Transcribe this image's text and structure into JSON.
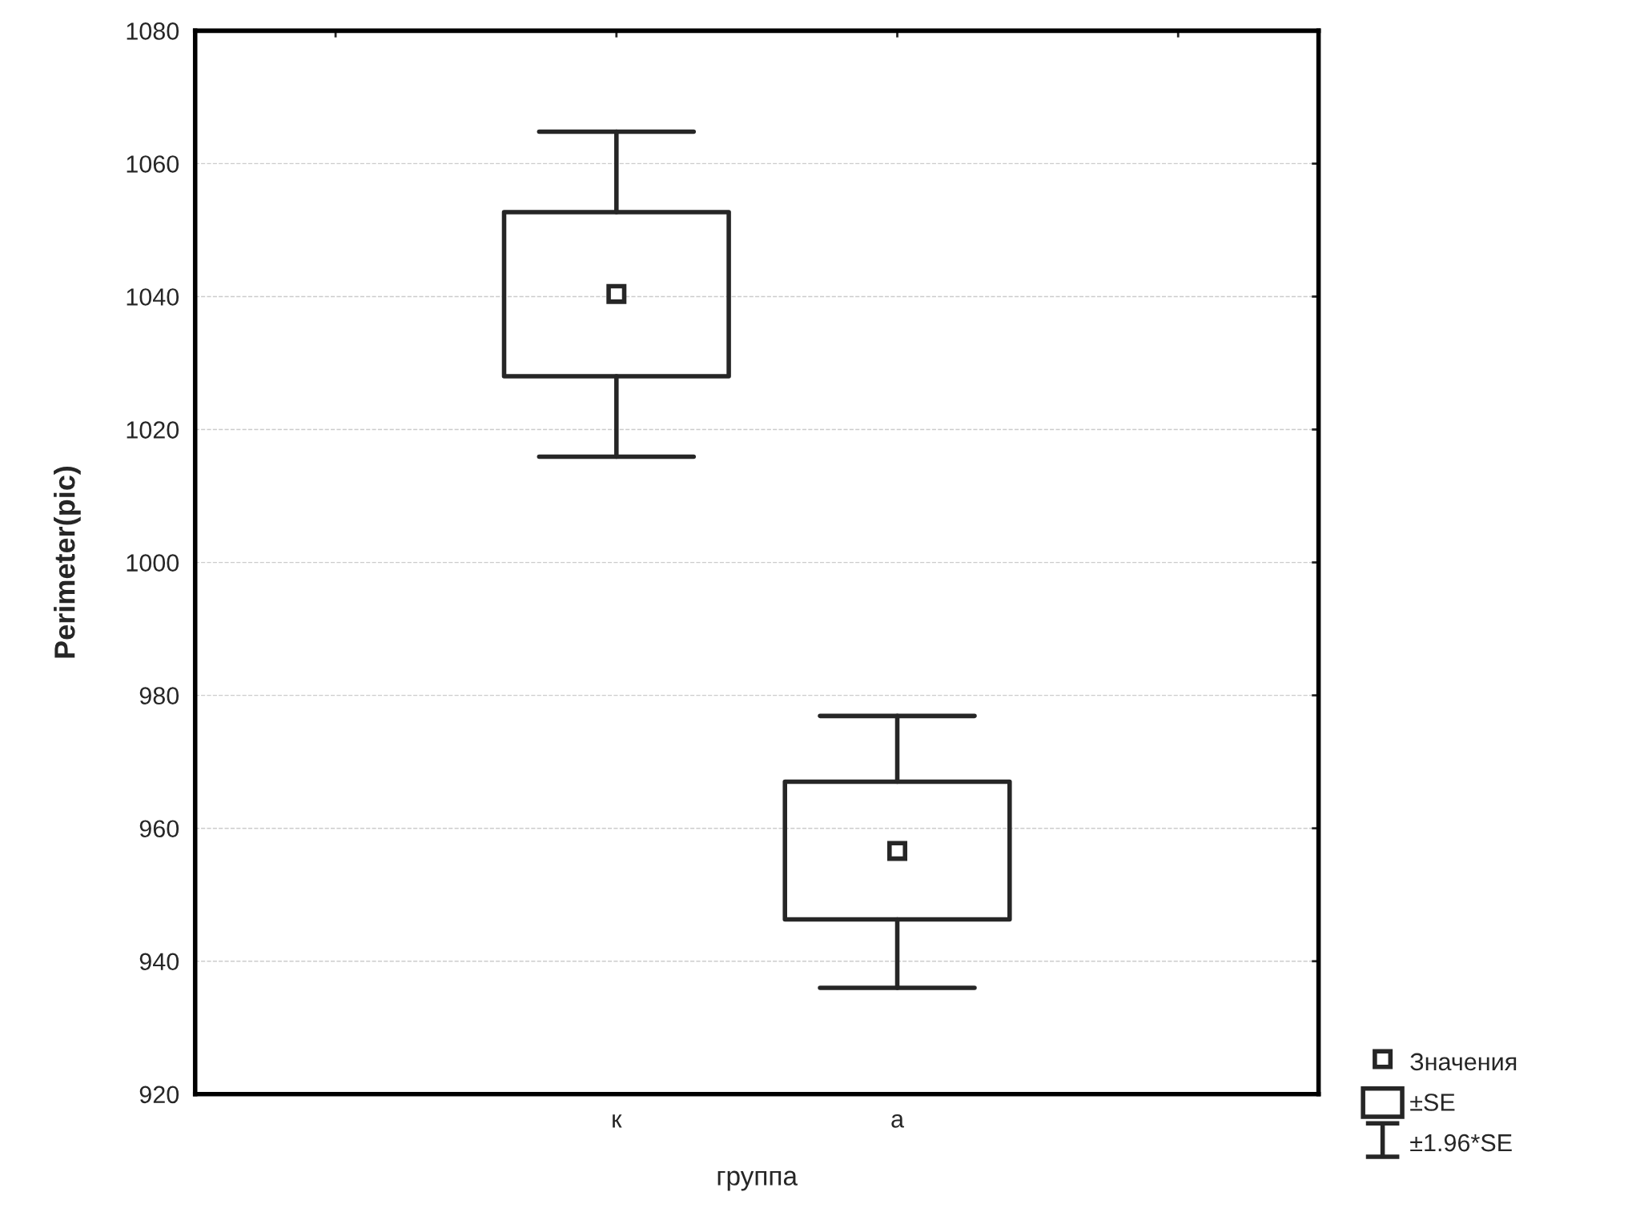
{
  "chart_data": {
    "type": "box",
    "ylabel": "Perimeter(pic)",
    "xlabel": "группа",
    "categories": [
      "к",
      "а"
    ],
    "boxes": [
      {
        "low": 1015.9,
        "q1": 1028.0,
        "median": 1040.4,
        "q3": 1052.7,
        "high": 1064.8
      },
      {
        "low": 936.0,
        "q1": 946.3,
        "median": 956.6,
        "q3": 967.0,
        "high": 976.9
      }
    ],
    "ylim": [
      920,
      1080
    ],
    "yticks": [
      920,
      940,
      960,
      980,
      1000,
      1020,
      1040,
      1060,
      1080
    ],
    "grid": "y",
    "marker": "square",
    "annotations": [
      "Значения",
      "±SE",
      "±1.96*SE"
    ]
  }
}
